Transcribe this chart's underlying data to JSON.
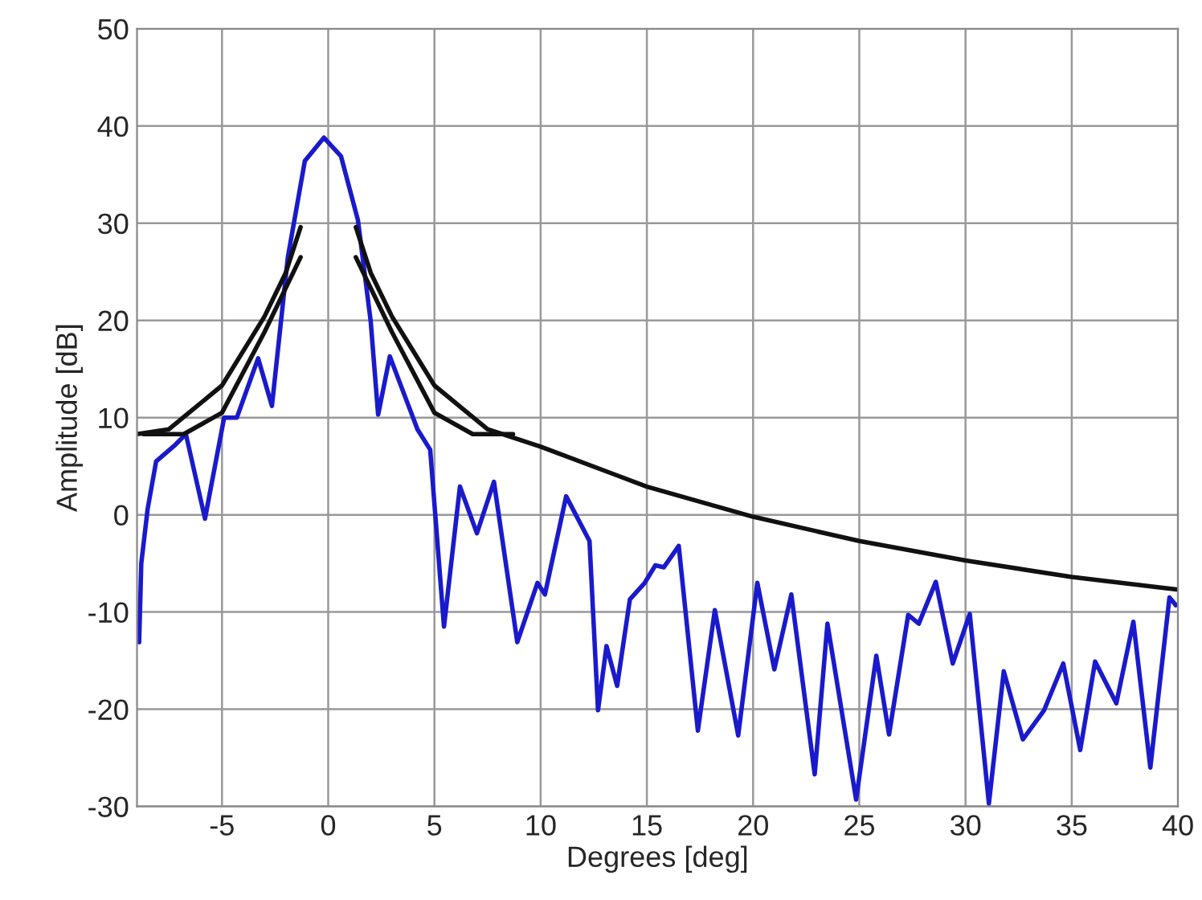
{
  "chart_data": {
    "type": "line",
    "xlabel": "Degrees [deg]",
    "ylabel": "Amplitude [dB]",
    "xlim": [
      -9,
      40
    ],
    "ylim": [
      -30,
      50
    ],
    "xticks": [
      -5,
      0,
      5,
      10,
      15,
      20,
      25,
      30,
      35,
      40
    ],
    "yticks": [
      -30,
      -20,
      -10,
      0,
      10,
      20,
      30,
      40,
      50
    ],
    "grid": true,
    "series": [
      {
        "color": "#1a1acc",
        "x": [
          -8.9,
          -8.8,
          -8.5,
          -8.1,
          -7.2,
          -6.7,
          -5.8,
          -4.9,
          -4.3,
          -3.3,
          -2.65,
          -1.9,
          -1.1,
          -0.2,
          0.6,
          1.4,
          2.0,
          2.35,
          2.9,
          4.2,
          4.8,
          5.45,
          6.2,
          7.0,
          7.8,
          8.9,
          9.85,
          10.2,
          11.2,
          12.3,
          12.7,
          13.1,
          13.6,
          14.2,
          14.9,
          15.4,
          15.8,
          16.5,
          17.4,
          18.2,
          19.3,
          20.2,
          21.0,
          21.8,
          22.9,
          23.5,
          24.85,
          25.8,
          26.4,
          27.3,
          27.8,
          28.6,
          29.4,
          30.2,
          31.1,
          31.8,
          32.7,
          33.7,
          34.6,
          35.4,
          36.1,
          37.1,
          37.9,
          38.7,
          39.6,
          39.9
        ],
        "values": [
          -13.1,
          -5,
          0.6,
          5.5,
          7.2,
          8.3,
          -0.4,
          10,
          10,
          16.1,
          11.2,
          26.5,
          36.4,
          38.8,
          36.9,
          30.3,
          19.9,
          10.3,
          16.3,
          8.8,
          6.7,
          -11.5,
          2.9,
          -1.9,
          3.4,
          -13.1,
          -7.0,
          -8.2,
          1.9,
          -2.7,
          -20.1,
          -13.5,
          -17.6,
          -8.7,
          -7.0,
          -5.2,
          -5.4,
          -3.2,
          -22.2,
          -9.8,
          -22.7,
          -7.0,
          -15.9,
          -8.2,
          -26.7,
          -11.2,
          -29.3,
          -14.5,
          -22.6,
          -10.3,
          -11.2,
          -6.9,
          -15.3,
          -10.2,
          -29.7,
          -16.1,
          -23.1,
          -20.1,
          -15.3,
          -24.2,
          -15.1,
          -19.4,
          -11.0,
          -26.0,
          -8.5,
          -9.3
        ]
      },
      {
        "color": "#111111",
        "x": [
          -9,
          -7.5,
          -5,
          -3,
          -2,
          -1.3,
          0,
          1.3,
          2,
          3,
          5,
          7.5,
          10,
          15,
          20,
          25,
          30,
          35,
          40
        ],
        "values": [
          8.3,
          8.8,
          13.3,
          20.4,
          24.9,
          29.6,
          null,
          29.6,
          24.9,
          20.4,
          13.3,
          8.8,
          7,
          2.9,
          -0.2,
          -2.7,
          -4.7,
          -6.4,
          -7.7
        ]
      },
      {
        "color": "#111111",
        "x": [
          -8.7,
          -6.8,
          -5,
          -3,
          -1.3,
          0,
          1.3,
          3,
          5,
          6.8,
          8.7
        ],
        "values": [
          8.3,
          8.3,
          10.5,
          18.8,
          26.5,
          null,
          26.5,
          18.8,
          10.5,
          8.3,
          8.3
        ]
      }
    ]
  }
}
